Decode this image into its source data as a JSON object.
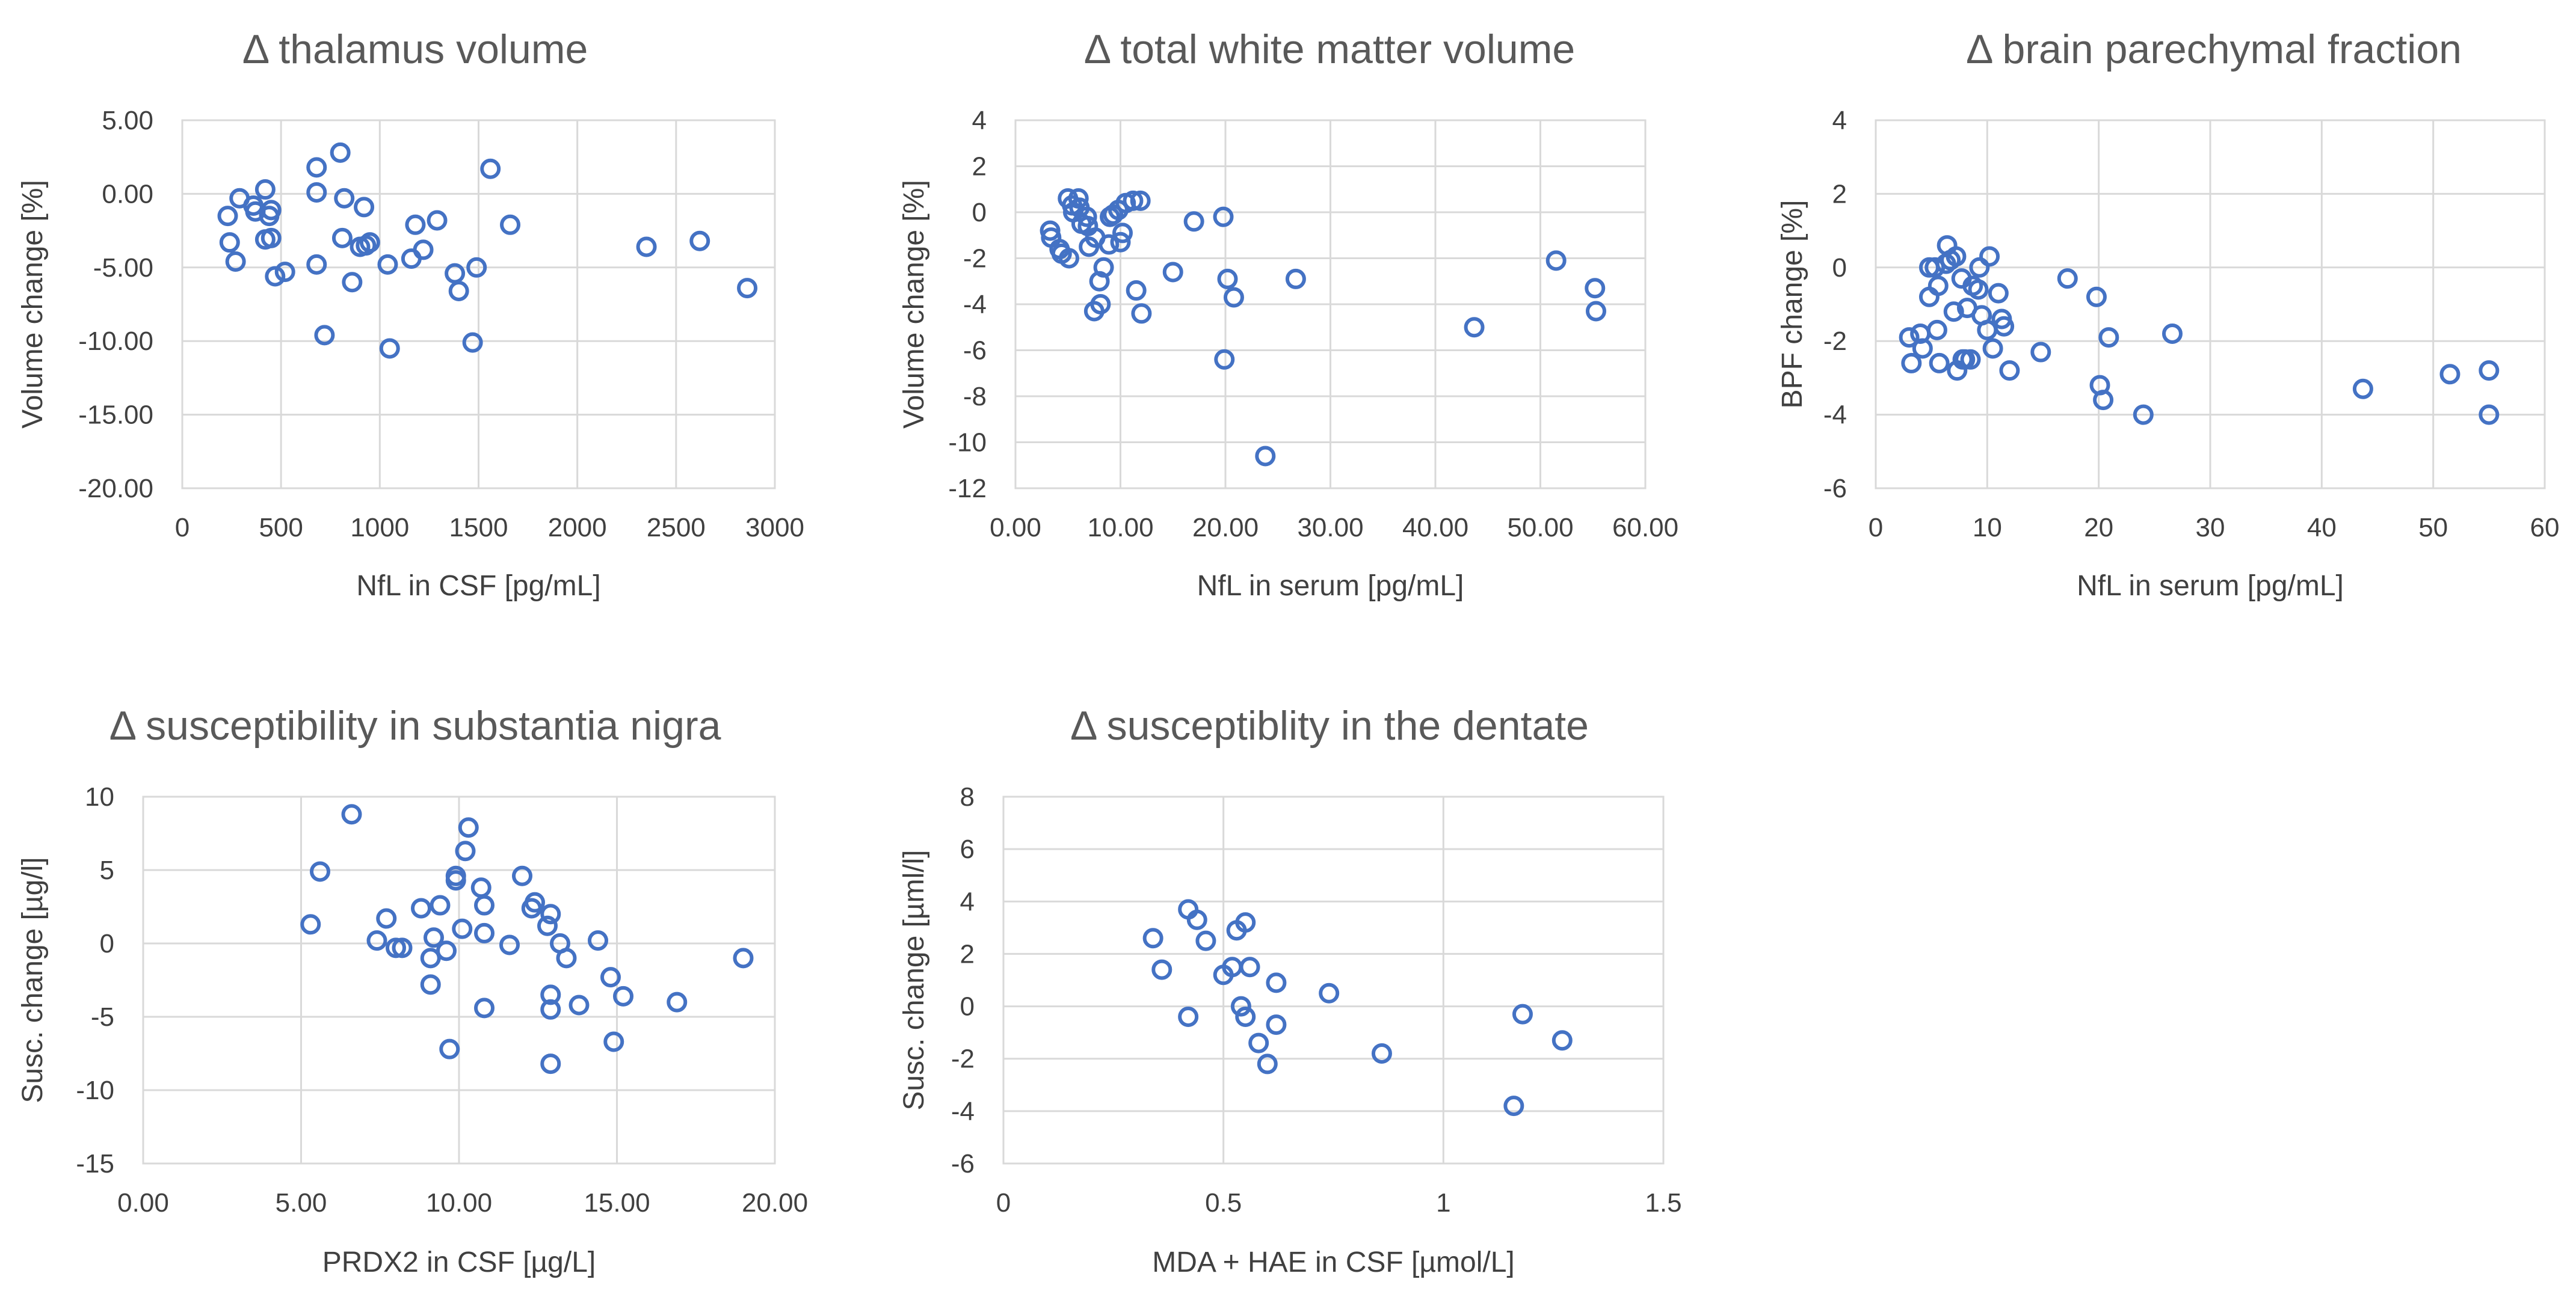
{
  "chart_data": [
    {
      "type": "scatter",
      "title": "Δ thalamus volume",
      "xlabel": "NfL in CSF [pg/mL]",
      "ylabel": "Volume change [%]",
      "xlim": [
        0,
        3000
      ],
      "ylim": [
        -20,
        5
      ],
      "x_ticks": [
        0,
        500,
        1000,
        1500,
        2000,
        2500,
        3000
      ],
      "y_ticks": [
        5,
        0,
        -5,
        -10,
        -15,
        -20
      ],
      "x_tick_labels": [
        "0",
        "500",
        "1000",
        "1500",
        "2000",
        "2500",
        "3000"
      ],
      "y_tick_labels": [
        "5.00",
        "0.00",
        "-5.00",
        "-10.00",
        "-15.00",
        "-20.00"
      ],
      "points": [
        [
          230,
          -1.5
        ],
        [
          240,
          -3.3
        ],
        [
          270,
          -4.6
        ],
        [
          290,
          -0.3
        ],
        [
          360,
          -0.8
        ],
        [
          370,
          -1.2
        ],
        [
          420,
          0.3
        ],
        [
          420,
          -3.1
        ],
        [
          440,
          -1.5
        ],
        [
          450,
          -1.1
        ],
        [
          450,
          -3.0
        ],
        [
          470,
          -5.6
        ],
        [
          520,
          -5.3
        ],
        [
          680,
          1.8
        ],
        [
          680,
          0.1
        ],
        [
          680,
          -4.8
        ],
        [
          720,
          -9.6
        ],
        [
          800,
          2.8
        ],
        [
          810,
          -3.0
        ],
        [
          820,
          -0.3
        ],
        [
          860,
          -6.0
        ],
        [
          900,
          -3.6
        ],
        [
          920,
          -0.9
        ],
        [
          930,
          -3.5
        ],
        [
          950,
          -3.3
        ],
        [
          1040,
          -4.8
        ],
        [
          1050,
          -10.5
        ],
        [
          1160,
          -4.4
        ],
        [
          1180,
          -2.1
        ],
        [
          1220,
          -3.8
        ],
        [
          1290,
          -1.8
        ],
        [
          1380,
          -5.4
        ],
        [
          1400,
          -6.6
        ],
        [
          1470,
          -10.1
        ],
        [
          1490,
          -5.0
        ],
        [
          1560,
          1.7
        ],
        [
          1660,
          -2.1
        ],
        [
          2350,
          -3.6
        ],
        [
          2620,
          -3.2
        ],
        [
          2860,
          -6.4
        ]
      ]
    },
    {
      "type": "scatter",
      "title": "Δ total white matter volume",
      "xlabel": "NfL in serum [pg/mL]",
      "ylabel": "Volume change [%]",
      "xlim": [
        0,
        60
      ],
      "ylim": [
        -12,
        4
      ],
      "x_ticks": [
        0,
        10,
        20,
        30,
        40,
        50,
        60
      ],
      "y_ticks": [
        4,
        2,
        0,
        -2,
        -4,
        -6,
        -8,
        -10,
        -12
      ],
      "x_tick_labels": [
        "0.00",
        "10.00",
        "20.00",
        "30.00",
        "40.00",
        "50.00",
        "60.00"
      ],
      "y_tick_labels": [
        "4",
        "2",
        "0",
        "-2",
        "-4",
        "-6",
        "-8",
        "-10",
        "-12"
      ],
      "points": [
        [
          3.3,
          -0.8
        ],
        [
          3.4,
          -1.1
        ],
        [
          4.2,
          -1.6
        ],
        [
          4.4,
          -1.8
        ],
        [
          5.0,
          0.6
        ],
        [
          5.1,
          -2.0
        ],
        [
          5.4,
          0.3
        ],
        [
          5.5,
          0.0
        ],
        [
          6.0,
          0.6
        ],
        [
          6.1,
          0.2
        ],
        [
          6.3,
          -0.5
        ],
        [
          6.8,
          -0.2
        ],
        [
          6.9,
          -0.6
        ],
        [
          7.0,
          -1.5
        ],
        [
          7.5,
          -4.3
        ],
        [
          7.6,
          -1.1
        ],
        [
          8.0,
          -3.0
        ],
        [
          8.1,
          -4.0
        ],
        [
          8.4,
          -2.4
        ],
        [
          8.9,
          -1.4
        ],
        [
          9.0,
          -0.2
        ],
        [
          9.3,
          -0.1
        ],
        [
          9.8,
          0.1
        ],
        [
          10.0,
          -1.3
        ],
        [
          10.2,
          -0.9
        ],
        [
          10.5,
          0.4
        ],
        [
          11.2,
          0.5
        ],
        [
          11.5,
          -3.4
        ],
        [
          11.9,
          0.5
        ],
        [
          12.0,
          -4.4
        ],
        [
          15.0,
          -2.6
        ],
        [
          17.0,
          -0.4
        ],
        [
          19.8,
          -0.2
        ],
        [
          19.9,
          -6.4
        ],
        [
          20.2,
          -2.9
        ],
        [
          20.8,
          -3.7
        ],
        [
          23.8,
          -10.6
        ],
        [
          26.7,
          -2.9
        ],
        [
          43.7,
          -5.0
        ],
        [
          51.5,
          -2.1
        ],
        [
          55.2,
          -3.3
        ],
        [
          55.3,
          -4.3
        ]
      ]
    },
    {
      "type": "scatter",
      "title": "Δ brain parechymal fraction",
      "xlabel": "NfL in serum [pg/mL]",
      "ylabel": "BPF change [%]",
      "xlim": [
        0,
        60
      ],
      "ylim": [
        -6,
        4
      ],
      "x_ticks": [
        0,
        10,
        20,
        30,
        40,
        50,
        60
      ],
      "y_ticks": [
        4,
        2,
        0,
        -2,
        -4,
        -6
      ],
      "x_tick_labels": [
        "0",
        "10",
        "20",
        "30",
        "40",
        "50",
        "60"
      ],
      "y_tick_labels": [
        "4",
        "2",
        "0",
        "-2",
        "-4",
        "-6"
      ],
      "points": [
        [
          3.0,
          -1.9
        ],
        [
          3.2,
          -2.6
        ],
        [
          4.0,
          -1.8
        ],
        [
          4.2,
          -2.2
        ],
        [
          4.8,
          -0.8
        ],
        [
          4.8,
          0.0
        ],
        [
          5.3,
          0.0
        ],
        [
          5.5,
          -1.7
        ],
        [
          5.6,
          -0.5
        ],
        [
          5.7,
          -2.6
        ],
        [
          6.3,
          0.1
        ],
        [
          6.4,
          0.6
        ],
        [
          6.7,
          0.2
        ],
        [
          7.0,
          -1.2
        ],
        [
          7.2,
          0.3
        ],
        [
          7.3,
          -2.8
        ],
        [
          7.7,
          -0.3
        ],
        [
          7.8,
          -2.5
        ],
        [
          8.0,
          -2.5
        ],
        [
          8.2,
          -1.1
        ],
        [
          8.5,
          -2.5
        ],
        [
          8.7,
          -0.5
        ],
        [
          9.2,
          -0.6
        ],
        [
          9.3,
          0.0
        ],
        [
          9.5,
          -1.3
        ],
        [
          10.0,
          -1.7
        ],
        [
          10.2,
          0.3
        ],
        [
          10.5,
          -2.2
        ],
        [
          11.0,
          -0.7
        ],
        [
          11.3,
          -1.4
        ],
        [
          11.5,
          -1.6
        ],
        [
          12.0,
          -2.8
        ],
        [
          17.2,
          -0.3
        ],
        [
          14.8,
          -2.3
        ],
        [
          19.8,
          -0.8
        ],
        [
          20.1,
          -3.2
        ],
        [
          20.4,
          -3.6
        ],
        [
          20.9,
          -1.9
        ],
        [
          24.0,
          -4.0
        ],
        [
          26.6,
          -1.8
        ],
        [
          43.7,
          -3.3
        ],
        [
          51.5,
          -2.9
        ],
        [
          55.0,
          -2.8
        ],
        [
          55.0,
          -4.0
        ]
      ]
    },
    {
      "type": "scatter",
      "title": "Δ susceptibility in substantia nigra",
      "xlabel": "PRDX2 in CSF [µg/L]",
      "ylabel": "Susc. change [µg/l]",
      "xlim": [
        0,
        20
      ],
      "ylim": [
        -15,
        10
      ],
      "x_ticks": [
        0,
        5,
        10,
        15,
        20
      ],
      "y_ticks": [
        10,
        5,
        0,
        -5,
        -10,
        -15
      ],
      "x_tick_labels": [
        "0.00",
        "5.00",
        "10.00",
        "15.00",
        "20.00"
      ],
      "y_tick_labels": [
        "10",
        "5",
        "0",
        "-5",
        "-10",
        "-15"
      ],
      "points": [
        [
          5.3,
          1.3
        ],
        [
          5.6,
          4.9
        ],
        [
          6.6,
          8.8
        ],
        [
          7.4,
          0.2
        ],
        [
          7.7,
          1.7
        ],
        [
          8.0,
          -0.3
        ],
        [
          8.2,
          -0.3
        ],
        [
          8.8,
          2.4
        ],
        [
          9.1,
          -1.0
        ],
        [
          9.1,
          -2.8
        ],
        [
          9.2,
          0.4
        ],
        [
          9.4,
          2.6
        ],
        [
          9.6,
          -0.5
        ],
        [
          9.7,
          -7.2
        ],
        [
          9.9,
          4.3
        ],
        [
          9.9,
          4.6
        ],
        [
          10.1,
          1.0
        ],
        [
          10.2,
          6.3
        ],
        [
          10.3,
          7.9
        ],
        [
          10.7,
          3.8
        ],
        [
          10.8,
          2.6
        ],
        [
          10.8,
          0.7
        ],
        [
          10.8,
          -4.4
        ],
        [
          11.6,
          -0.1
        ],
        [
          12.0,
          4.6
        ],
        [
          12.3,
          2.4
        ],
        [
          12.4,
          2.8
        ],
        [
          12.8,
          1.2
        ],
        [
          12.9,
          2.0
        ],
        [
          12.9,
          -3.5
        ],
        [
          12.9,
          -4.5
        ],
        [
          12.9,
          -8.2
        ],
        [
          13.2,
          0.0
        ],
        [
          13.4,
          -1.0
        ],
        [
          13.8,
          -4.2
        ],
        [
          14.4,
          0.2
        ],
        [
          14.8,
          -2.3
        ],
        [
          14.9,
          -6.7
        ],
        [
          15.2,
          -3.6
        ],
        [
          16.9,
          -4.0
        ],
        [
          19.0,
          -1.0
        ]
      ]
    },
    {
      "type": "scatter",
      "title": "Δ susceptiblity in the dentate",
      "xlabel": "MDA + HAE  in CSF [µmol/L]",
      "ylabel": "Susc. change  [µml/l]",
      "xlim": [
        0,
        1.5
      ],
      "ylim": [
        -6,
        8
      ],
      "x_ticks": [
        0,
        0.5,
        1,
        1.5
      ],
      "y_ticks": [
        8,
        6,
        4,
        2,
        0,
        -2,
        -4,
        -6
      ],
      "x_tick_labels": [
        "0",
        "0.5",
        "1",
        "1.5"
      ],
      "y_tick_labels": [
        "8",
        "6",
        "4",
        "2",
        "0",
        "-2",
        "-4",
        "-6"
      ],
      "points": [
        [
          0.34,
          2.6
        ],
        [
          0.36,
          1.4
        ],
        [
          0.42,
          3.7
        ],
        [
          0.42,
          -0.4
        ],
        [
          0.44,
          3.3
        ],
        [
          0.46,
          2.5
        ],
        [
          0.5,
          1.2
        ],
        [
          0.52,
          1.5
        ],
        [
          0.53,
          2.9
        ],
        [
          0.54,
          0.0
        ],
        [
          0.55,
          -0.4
        ],
        [
          0.55,
          3.2
        ],
        [
          0.56,
          1.5
        ],
        [
          0.58,
          -1.4
        ],
        [
          0.6,
          -2.2
        ],
        [
          0.62,
          0.9
        ],
        [
          0.62,
          -0.7
        ],
        [
          0.74,
          0.5
        ],
        [
          0.86,
          -1.8
        ],
        [
          1.16,
          -3.8
        ],
        [
          1.18,
          -0.3
        ],
        [
          1.27,
          -1.3
        ]
      ]
    }
  ]
}
